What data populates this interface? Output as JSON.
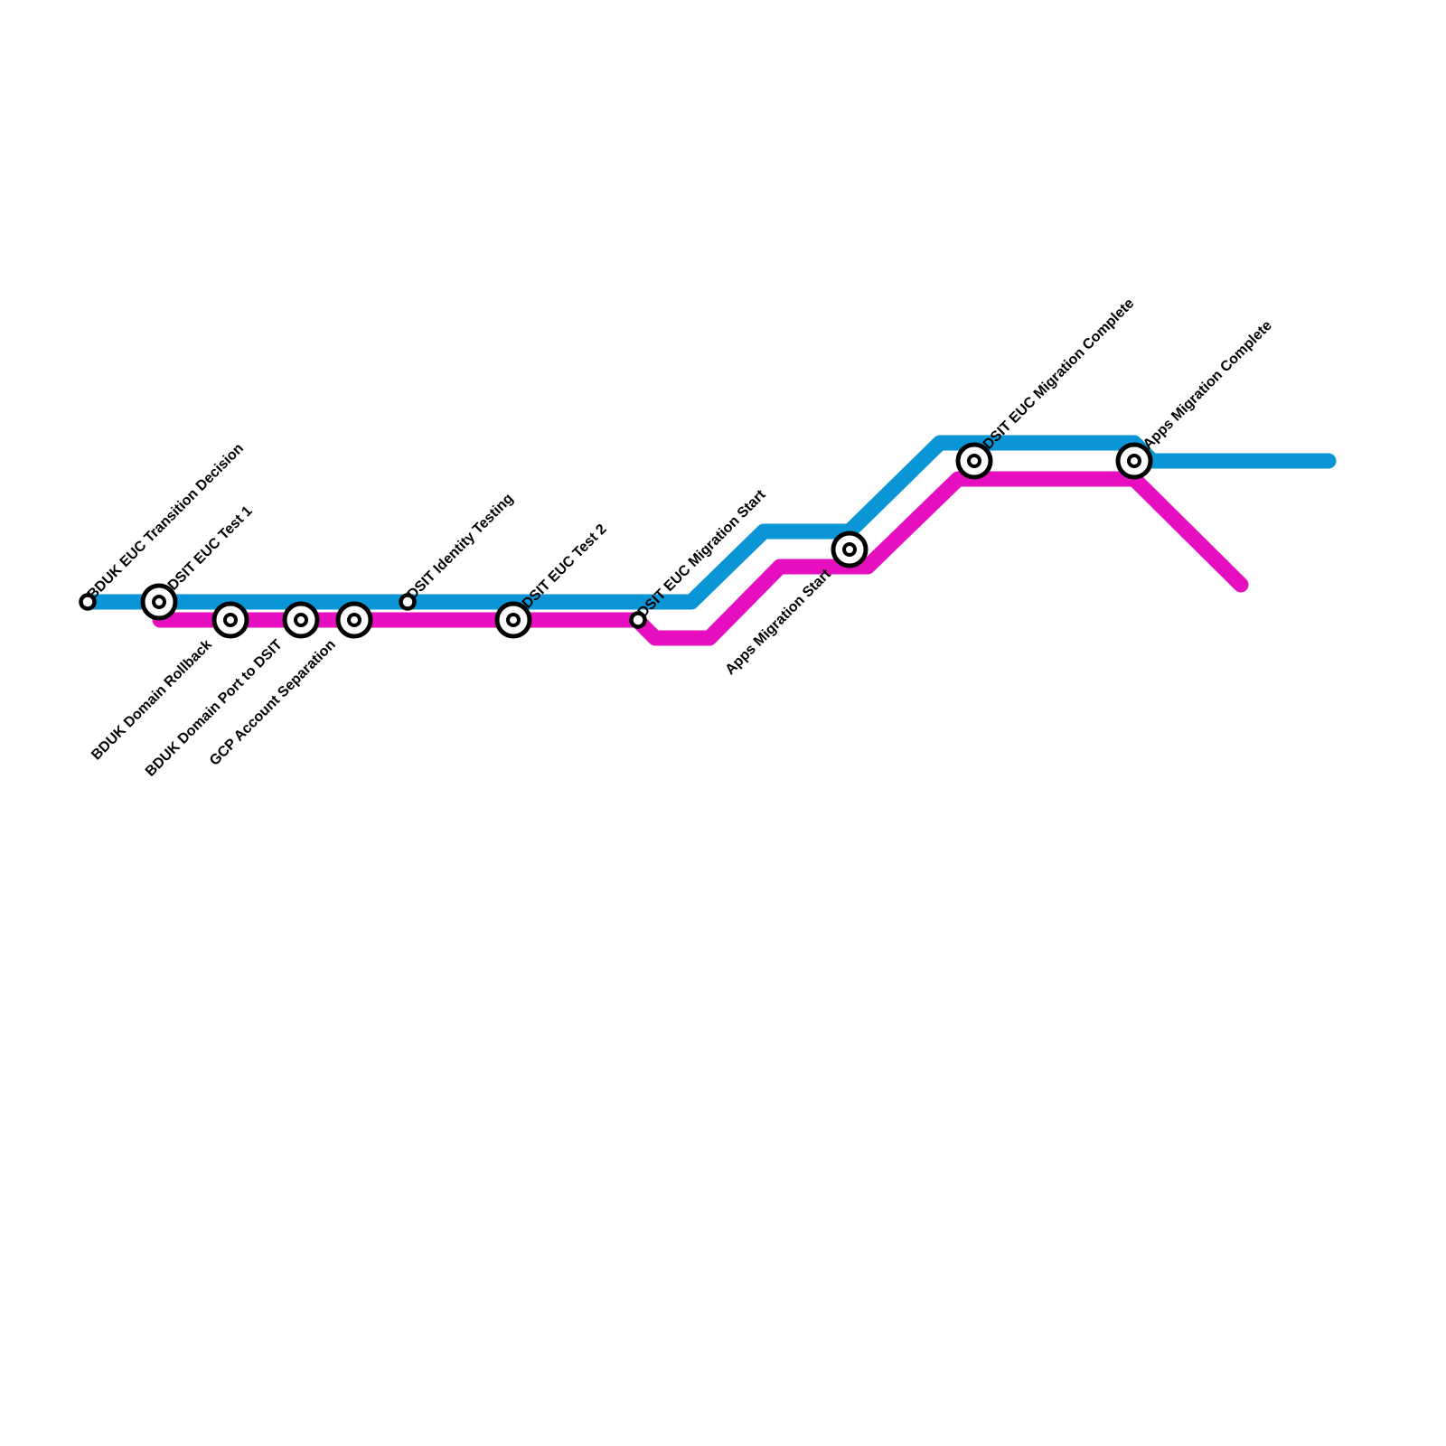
{
  "lines": [
    {
      "id": "blue-line",
      "color": "#0a96d6"
    },
    {
      "id": "magenta-line",
      "color": "#e60fbf"
    }
  ],
  "stations": [
    {
      "name": "BDUK EUC Transition Decision",
      "type": "stop",
      "label_side": "above"
    },
    {
      "name": "DSIT EUC Test 1",
      "type": "interchange",
      "label_side": "above"
    },
    {
      "name": "BDUK Domain Rollback",
      "type": "interchange",
      "label_side": "below"
    },
    {
      "name": "BDUK Domain Port to DSIT",
      "type": "interchange",
      "label_side": "below"
    },
    {
      "name": "GCP Account Separation",
      "type": "interchange",
      "label_side": "below"
    },
    {
      "name": "DSIT Identity Testing",
      "type": "stop",
      "label_side": "above"
    },
    {
      "name": "DSIT EUC Test 2",
      "type": "interchange",
      "label_side": "above"
    },
    {
      "name": "DSIT EUC Migration Start",
      "type": "stop",
      "label_side": "above"
    },
    {
      "name": "Apps Migration Start",
      "type": "interchange",
      "label_side": "below"
    },
    {
      "name": "DSIT EUC Migration Complete",
      "type": "interchange",
      "label_side": "above"
    },
    {
      "name": "Apps Migration Complete",
      "type": "interchange",
      "label_side": "above"
    }
  ]
}
